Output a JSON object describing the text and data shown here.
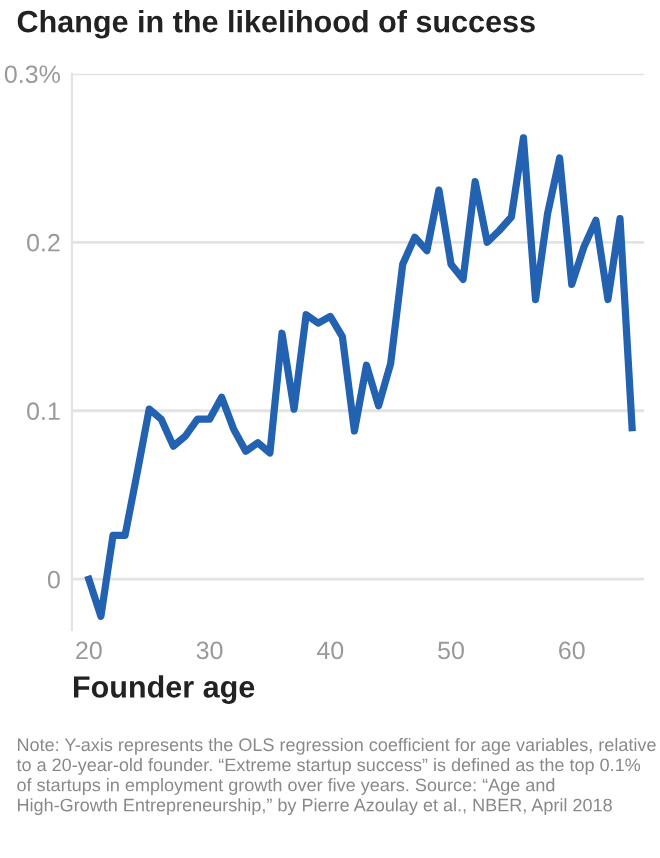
{
  "chart_data": {
    "type": "line",
    "title": "Change in the likelihood of success",
    "xlabel": "Founder age",
    "x": [
      20,
      21,
      22,
      23,
      24,
      25,
      26,
      27,
      28,
      29,
      30,
      31,
      32,
      33,
      34,
      35,
      36,
      37,
      38,
      39,
      40,
      41,
      42,
      43,
      44,
      45,
      46,
      47,
      48,
      49,
      50,
      51,
      52,
      53,
      54,
      55,
      56,
      57,
      58,
      59,
      60,
      61,
      62,
      63,
      64,
      65
    ],
    "series": [
      {
        "color": "#2262b0",
        "values": [
          0,
          -0.022,
          0.026,
          0.026,
          0.063,
          0.101,
          0.095,
          0.079,
          0.085,
          0.095,
          0.095,
          0.108,
          0.089,
          0.076,
          0.081,
          0.075,
          0.146,
          0.101,
          0.157,
          0.152,
          0.156,
          0.144,
          0.088,
          0.127,
          0.103,
          0.128,
          0.187,
          0.203,
          0.195,
          0.231,
          0.187,
          0.178,
          0.236,
          0.2,
          0.207,
          0.215,
          0.262,
          0.166,
          0.217,
          0.25,
          0.175,
          0.197,
          0.213,
          0.166,
          0.214,
          0.09
        ]
      }
    ],
    "xlim": [
      18.6,
      66
    ],
    "xticks": [
      20,
      30,
      40,
      50,
      60
    ],
    "ylim": [
      -0.03,
      0.3
    ],
    "yticks": [
      0,
      0.1,
      0.2,
      {
        "value": 0.3,
        "label": "0.3%"
      }
    ],
    "grid": "y",
    "marker": "none",
    "line_style": "solid",
    "annotations": [
      "Note: Y-axis represents the OLS regression coefficient for age variables, relative to a 20-year-old founder. “Extreme startup success” is defined as the top 0.1% of startups in employment growth over five years. Source: “Age and High-Growth Entrepreneurship,” by Pierre Azoulay et al., NBER, April 2018"
    ]
  }
}
